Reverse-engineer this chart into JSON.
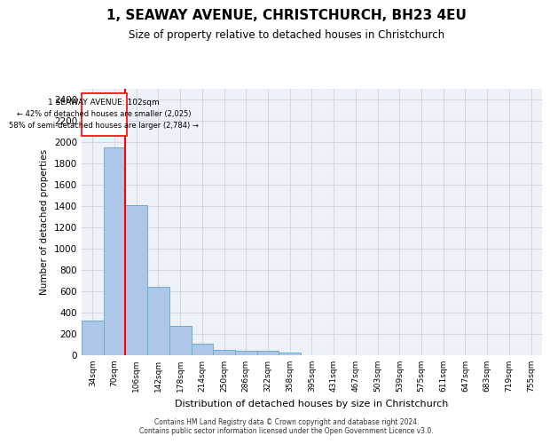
{
  "title": "1, SEAWAY AVENUE, CHRISTCHURCH, BH23 4EU",
  "subtitle": "Size of property relative to detached houses in Christchurch",
  "xlabel": "Distribution of detached houses by size in Christchurch",
  "ylabel": "Number of detached properties",
  "bin_labels": [
    "34sqm",
    "70sqm",
    "106sqm",
    "142sqm",
    "178sqm",
    "214sqm",
    "250sqm",
    "286sqm",
    "322sqm",
    "358sqm",
    "395sqm",
    "431sqm",
    "467sqm",
    "503sqm",
    "539sqm",
    "575sqm",
    "611sqm",
    "647sqm",
    "683sqm",
    "719sqm",
    "755sqm"
  ],
  "bar_values": [
    325,
    1950,
    1405,
    645,
    275,
    105,
    50,
    42,
    38,
    22,
    0,
    0,
    0,
    0,
    0,
    0,
    0,
    0,
    0,
    0,
    0
  ],
  "bar_color": "#aec6e8",
  "bar_edge_color": "#6aaed6",
  "subject_sqm": 102,
  "annotation_text_line1": "1 SEAWAY AVENUE: 102sqm",
  "annotation_text_line2": "← 42% of detached houses are smaller (2,025)",
  "annotation_text_line3": "58% of semi-detached houses are larger (2,784) →",
  "ylim": [
    0,
    2500
  ],
  "yticks": [
    0,
    200,
    400,
    600,
    800,
    1000,
    1200,
    1400,
    1600,
    1800,
    2000,
    2200,
    2400
  ],
  "grid_color": "#d0d8e8",
  "background_color": "#eef2f8",
  "footer_line1": "Contains HM Land Registry data © Crown copyright and database right 2024.",
  "footer_line2": "Contains public sector information licensed under the Open Government Licence v3.0."
}
